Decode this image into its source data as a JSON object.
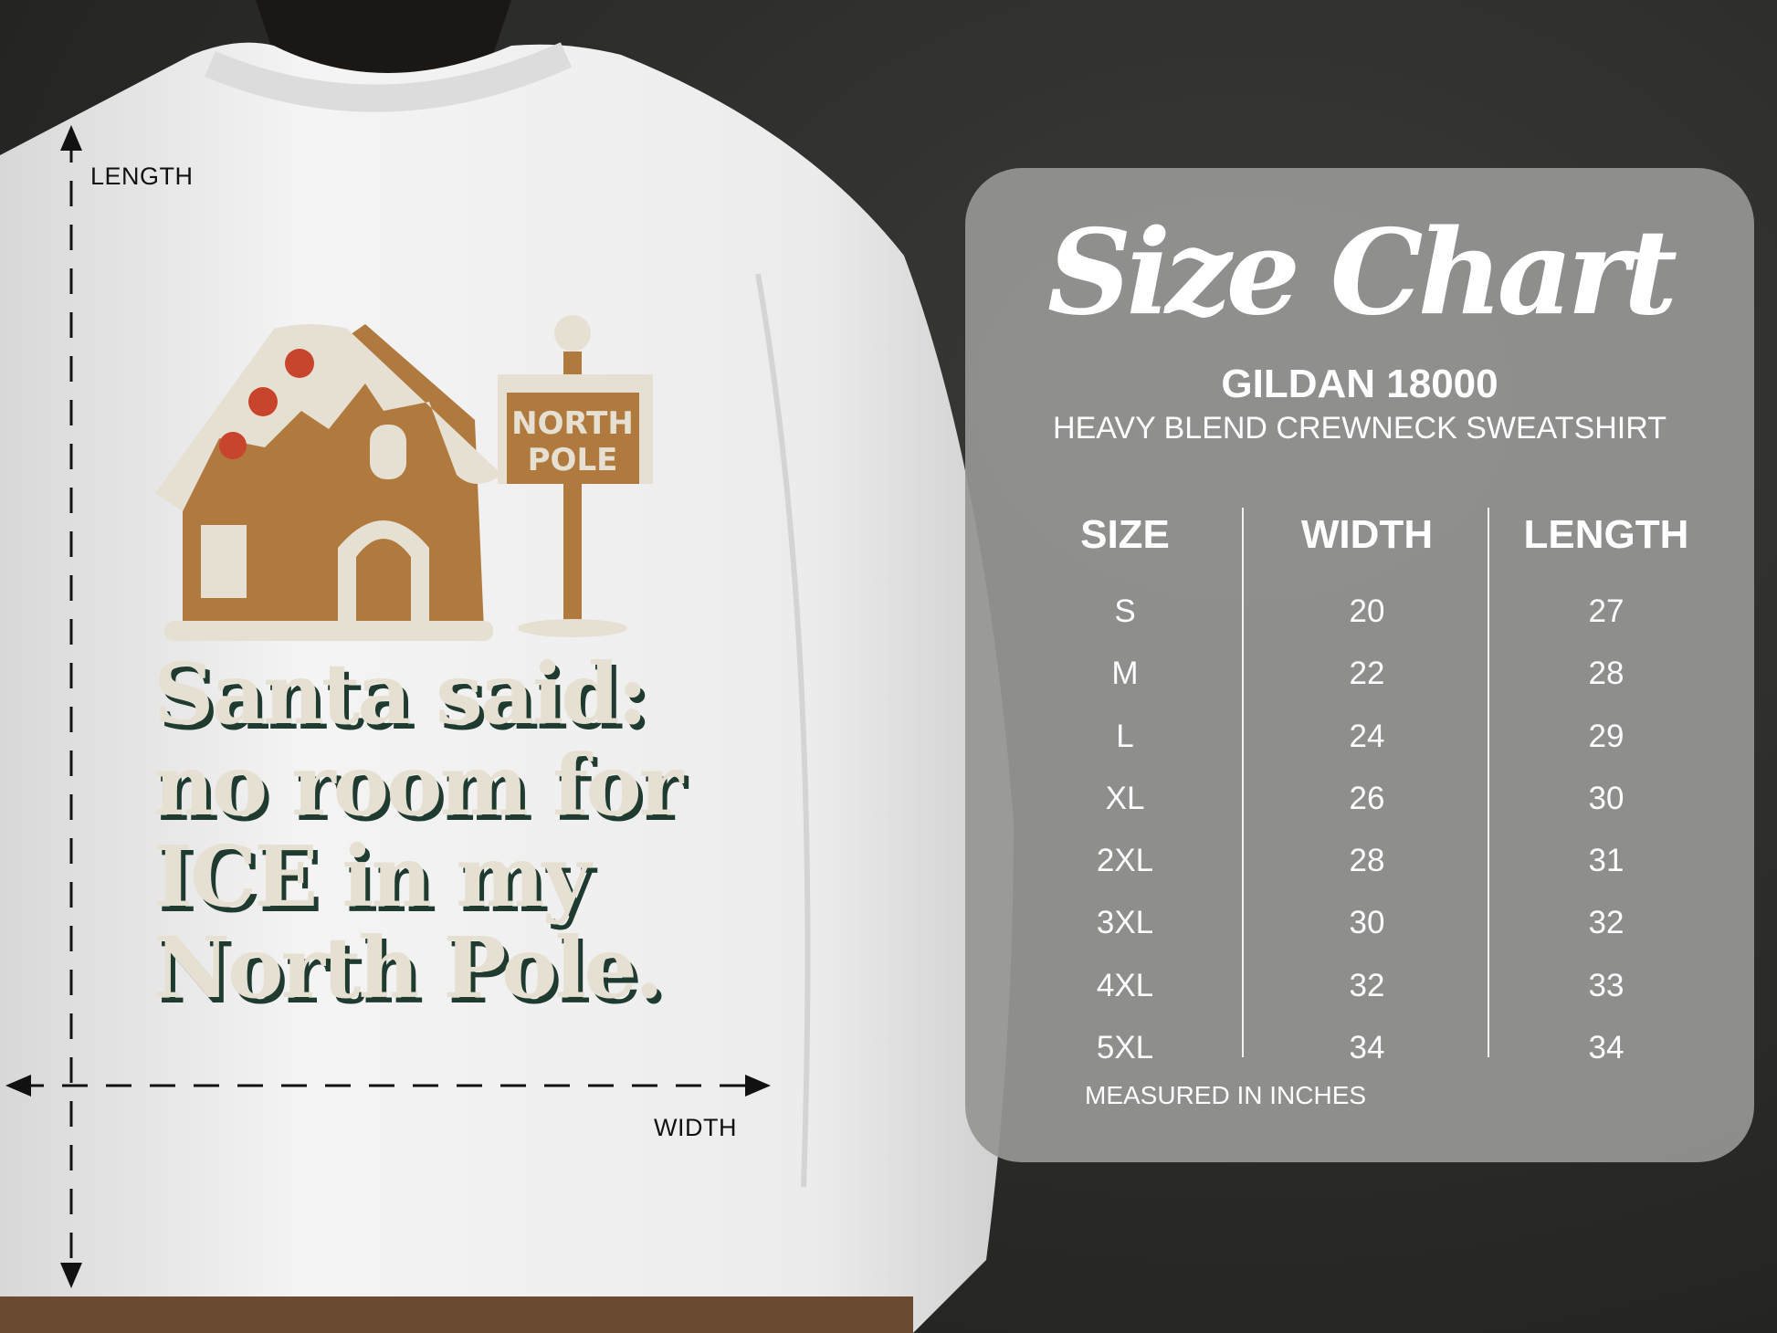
{
  "measure_labels": {
    "length": "LENGTH",
    "width": "WIDTH"
  },
  "design": {
    "sign_lines": [
      "NORTH",
      "POLE"
    ],
    "slogan_lines": [
      "Santa said:",
      "no room for",
      "ICE in my",
      "North Pole."
    ]
  },
  "size_chart": {
    "title": "Size Chart",
    "brand": "GILDAN 18000",
    "product": "HEAVY BLEND CREWNECK SWEATSHIRT",
    "columns": [
      {
        "header": "SIZE",
        "values": [
          "S",
          "M",
          "L",
          "XL",
          "2XL",
          "3XL",
          "4XL",
          "5XL"
        ]
      },
      {
        "header": "WIDTH",
        "values": [
          "20",
          "22",
          "24",
          "26",
          "28",
          "30",
          "32",
          "34"
        ]
      },
      {
        "header": "LENGTH",
        "values": [
          "27",
          "28",
          "29",
          "30",
          "31",
          "32",
          "33",
          "34"
        ]
      }
    ],
    "footnote": "MEASURED IN INCHES"
  },
  "colors": {
    "card": "#969694",
    "background": "#2b2b29",
    "shirt": "#f2f2f2",
    "gingerbread": "#b07a3e",
    "icing": "#e6e0d2"
  }
}
